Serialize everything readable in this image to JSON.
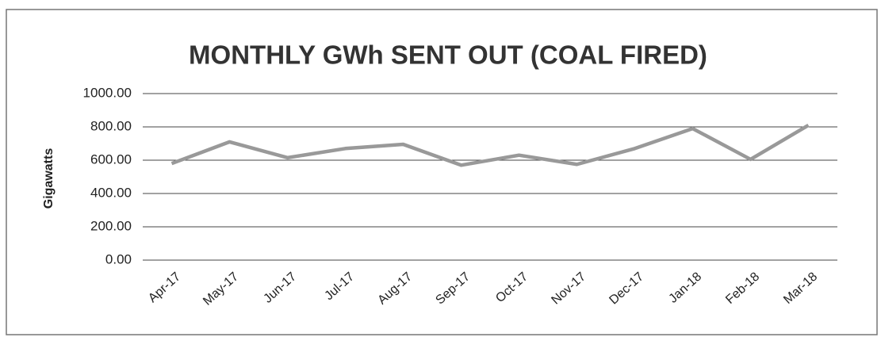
{
  "chart_data": {
    "type": "line",
    "title": "MONTHLY GWh SENT OUT (COAL FIRED)",
    "y_label": "Gigawatts",
    "categories": [
      "Apr-17",
      "May-17",
      "Jun-17",
      "Jul-17",
      "Aug-17",
      "Sep-17",
      "Oct-17",
      "Nov-17",
      "Dec-17",
      "Jan-18",
      "Feb-18",
      "Mar-18"
    ],
    "series": [
      {
        "name": "GWh sent out",
        "color": "#999999",
        "values": [
          580,
          710,
          615,
          670,
          695,
          570,
          630,
          575,
          670,
          790,
          605,
          810
        ]
      }
    ],
    "ylim": [
      0,
      1000
    ],
    "yticks": [
      {
        "value": 0,
        "label": "0.00"
      },
      {
        "value": 200,
        "label": "200.00"
      },
      {
        "value": 400,
        "label": "400.00"
      },
      {
        "value": 600,
        "label": "600.00"
      },
      {
        "value": 800,
        "label": "800.00"
      },
      {
        "value": 1000,
        "label": "1000.00"
      }
    ],
    "grid": true
  }
}
